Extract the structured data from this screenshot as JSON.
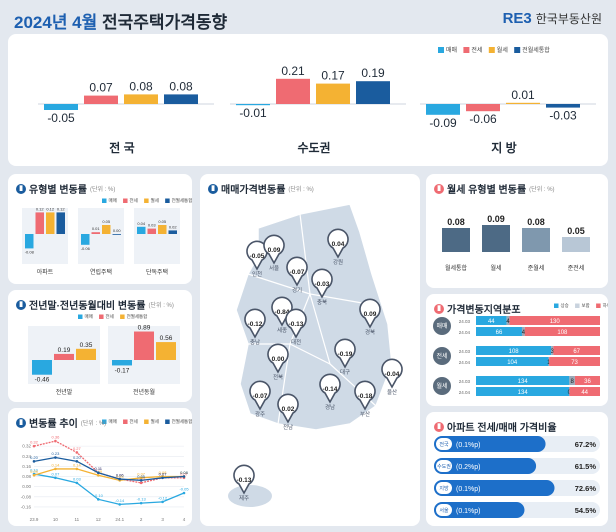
{
  "header": {
    "year_month": "2024년 4월",
    "title": "전국주택가격동향",
    "logo_mark": "RE3",
    "logo_name": "한국부동산원"
  },
  "colors": {
    "sale": "#29a8e0",
    "jeonse": "#ef6b72",
    "wolse": "#f4b233",
    "combined": "#1a5c9e",
    "region_bg": "#cfdae6"
  },
  "legend": [
    "매매",
    "전세",
    "월세",
    "전월세통합"
  ],
  "top": {
    "chart_data": {
      "type": "bar",
      "categories": [
        "전 국",
        "수도권",
        "지 방"
      ],
      "series": [
        {
          "name": "매매",
          "values": [
            -0.05,
            -0.01,
            -0.09
          ]
        },
        {
          "name": "전세",
          "values": [
            0.07,
            0.21,
            -0.06
          ]
        },
        {
          "name": "월세",
          "values": [
            0.08,
            0.17,
            0.01
          ]
        },
        {
          "name": "전월세통합",
          "values": [
            0.08,
            0.19,
            -0.03
          ]
        }
      ]
    }
  },
  "type_panel": {
    "title": "유형별 변동률",
    "unit": "(단위 : %)",
    "chart_data": {
      "type": "bar",
      "categories": [
        "아파트",
        "연립주택",
        "단독주택"
      ],
      "series": [
        {
          "name": "매매",
          "values": [
            -0.08,
            -0.06,
            0.04
          ]
        },
        {
          "name": "전세",
          "values": [
            0.12,
            0.01,
            0.03
          ]
        },
        {
          "name": "월세",
          "values": [
            0.12,
            0.05,
            0.05
          ]
        },
        {
          "name": "전월세통합",
          "values": [
            0.12,
            0.0,
            0.02
          ]
        }
      ]
    }
  },
  "yoy_panel": {
    "title": "전년말·전년동월대비 변동률",
    "unit": "(단위 : %)",
    "chart_data": {
      "type": "bar",
      "categories": [
        "전년말",
        "전년동월"
      ],
      "series": [
        {
          "name": "매매",
          "values": [
            -0.46,
            -0.17
          ]
        },
        {
          "name": "전세",
          "values": [
            0.19,
            0.89
          ]
        },
        {
          "name": "전월세통합",
          "values": [
            0.35,
            0.56
          ]
        }
      ]
    }
  },
  "trend_panel": {
    "title": "변동률 추이",
    "unit": "(단위 : %)",
    "chart_data": {
      "type": "line",
      "x": [
        "23.9",
        "10",
        "11",
        "12",
        "24.1",
        "2",
        "3",
        "4"
      ],
      "ylim": [
        -0.2,
        0.4
      ],
      "yticks": [
        "0.32",
        "0.24",
        "0.16",
        "0.08",
        "0.00",
        "-0.08",
        "-0.16"
      ],
      "series": [
        {
          "name": "매매",
          "values": [
            0.1,
            0.07,
            0.03,
            -0.1,
            -0.14,
            -0.13,
            -0.12,
            -0.05
          ]
        },
        {
          "name": "전세",
          "values": [
            0.32,
            0.36,
            0.27,
            0.11,
            0.06,
            0.03,
            0.07,
            0.07
          ]
        },
        {
          "name": "월세",
          "values": [
            0.09,
            0.14,
            0.14,
            0.09,
            0.05,
            0.07,
            0.08,
            0.08
          ]
        },
        {
          "name": "전월세통합",
          "values": [
            0.2,
            0.23,
            0.2,
            0.11,
            0.06,
            0.05,
            0.07,
            0.08
          ]
        }
      ]
    }
  },
  "map_panel": {
    "title": "매매가격변동률",
    "unit": "(단위 : %)",
    "pins": [
      {
        "name": "인천",
        "value": "-0.05"
      },
      {
        "name": "서울",
        "value": "0.09"
      },
      {
        "name": "경기",
        "value": "-0.07"
      },
      {
        "name": "강원",
        "value": "0.04"
      },
      {
        "name": "충북",
        "value": "-0.03"
      },
      {
        "name": "세종",
        "value": "-0.84"
      },
      {
        "name": "충남",
        "value": "-0.12"
      },
      {
        "name": "대전",
        "value": "-0.13"
      },
      {
        "name": "경북",
        "value": "0.09"
      },
      {
        "name": "대구",
        "value": "-0.19"
      },
      {
        "name": "전북",
        "value": "0.00"
      },
      {
        "name": "울산",
        "value": "-0.04"
      },
      {
        "name": "경남",
        "value": "-0.14"
      },
      {
        "name": "부산",
        "value": "-0.18"
      },
      {
        "name": "광주",
        "value": "-0.07"
      },
      {
        "name": "전남",
        "value": "0.02"
      },
      {
        "name": "제주",
        "value": "-0.13"
      }
    ]
  },
  "wolse_panel": {
    "title": "월세 유형별 변동률",
    "unit": "(단위 : %)",
    "chart_data": {
      "type": "bar",
      "categories": [
        "월세통합",
        "월세",
        "준월세",
        "준전세"
      ],
      "values": [
        0.08,
        0.09,
        0.08,
        0.05
      ]
    }
  },
  "dist_panel": {
    "title": "가격변동지역분포",
    "legend": [
      "상승",
      "보합",
      "하락"
    ],
    "groups": [
      {
        "label": "매매",
        "rows": [
          {
            "period": "24.03",
            "values": [
              44,
              4,
              130
            ]
          },
          {
            "period": "24.04",
            "values": [
              66,
              4,
              108
            ]
          }
        ]
      },
      {
        "label": "전세",
        "rows": [
          {
            "period": "24.03",
            "values": [
              108,
              3,
              67
            ]
          },
          {
            "period": "24.04",
            "values": [
              104,
              1,
              73
            ]
          }
        ]
      },
      {
        "label": "월세",
        "rows": [
          {
            "period": "24.03",
            "values": [
              134,
              8,
              36
            ]
          },
          {
            "period": "24.04",
            "values": [
              134,
              0,
              44
            ]
          }
        ]
      }
    ]
  },
  "ratio_panel": {
    "title": "아파트 전세/매매 가격비율",
    "rows": [
      {
        "label": "전국",
        "change": "(0.1%p)",
        "value": "67.2%",
        "pct": 67.2
      },
      {
        "label": "수도권",
        "change": "(0.2%p)",
        "value": "61.5%",
        "pct": 61.5
      },
      {
        "label": "지방",
        "change": "(0.1%p)",
        "value": "72.6%",
        "pct": 72.6
      },
      {
        "label": "서울",
        "change": "(0.1%p)",
        "value": "54.5%",
        "pct": 54.5
      }
    ]
  }
}
